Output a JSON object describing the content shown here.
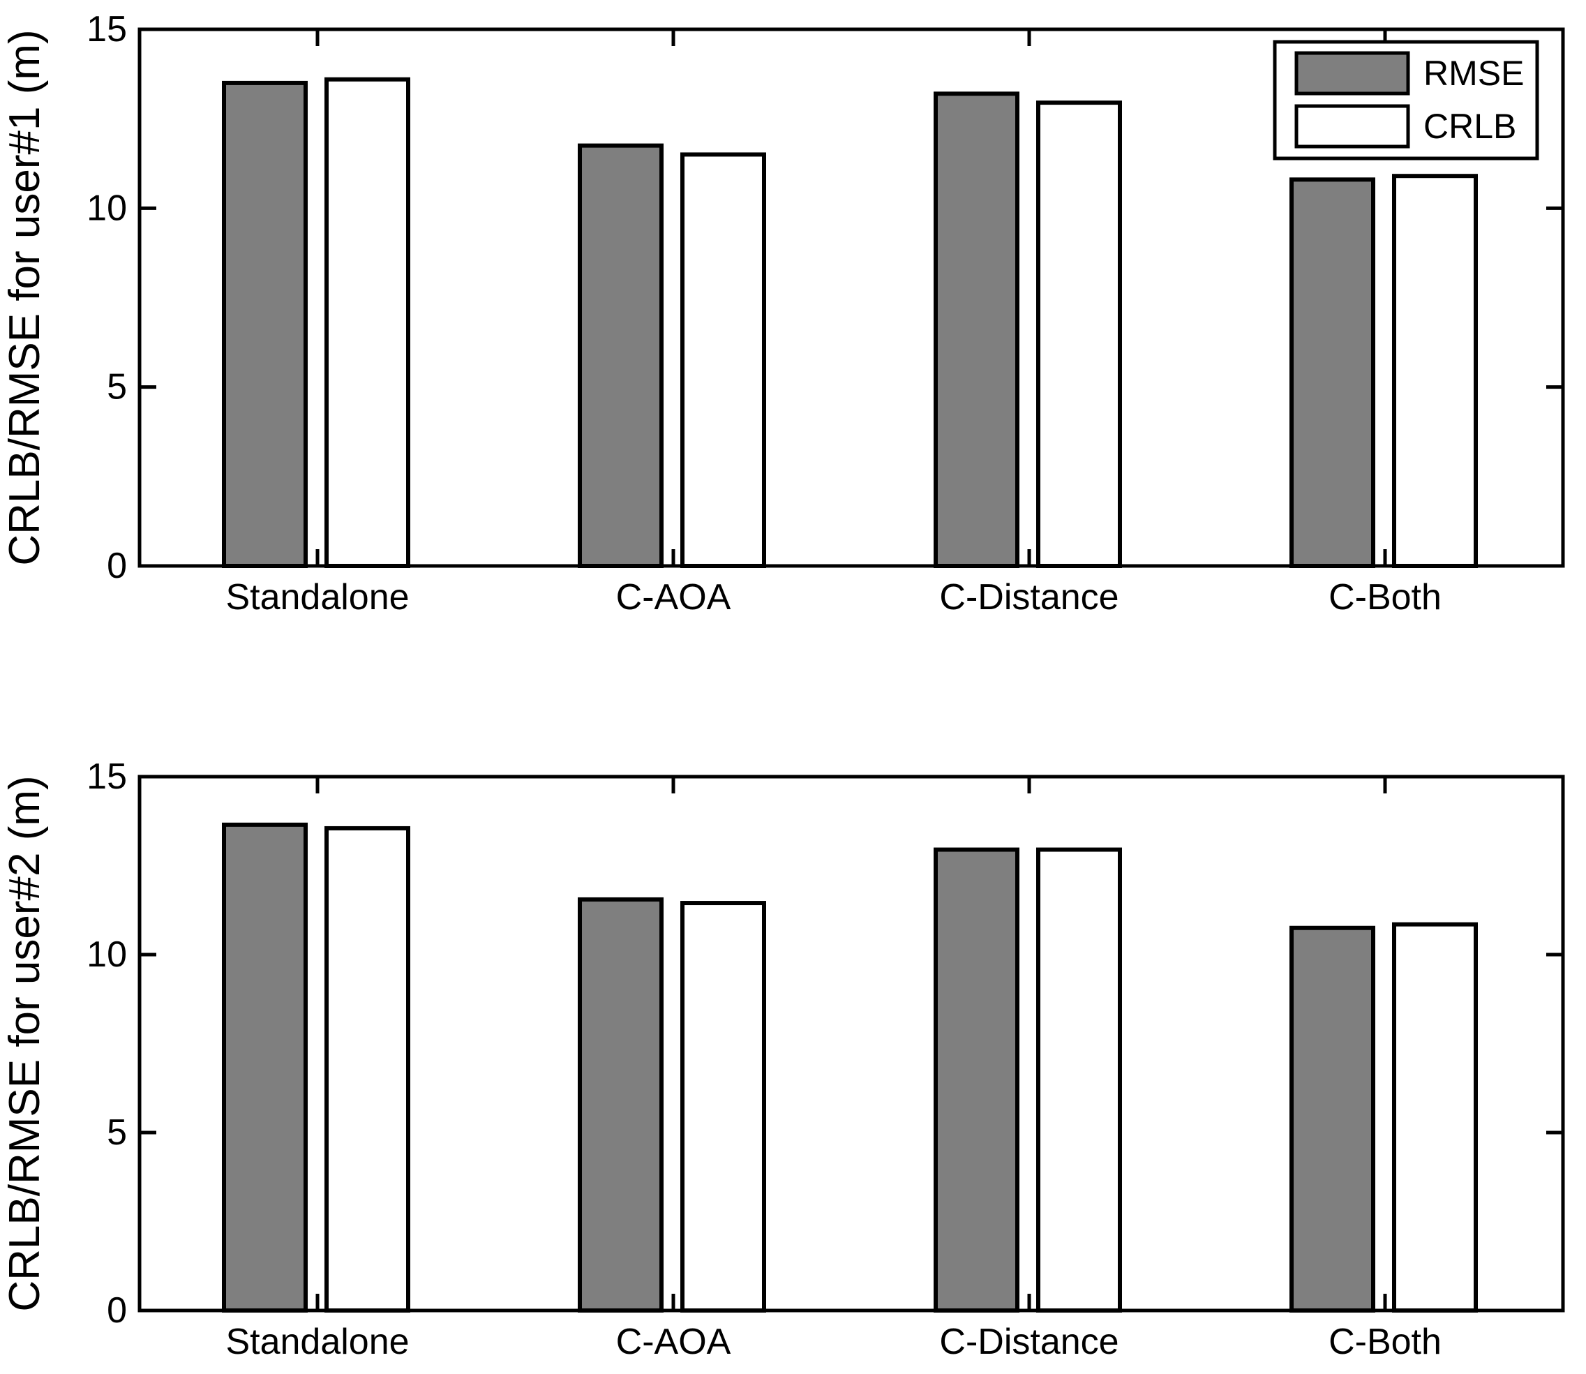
{
  "figure": {
    "background": "#ffffff",
    "axis_color": "#000000",
    "bar_fill_rmse": "#7f7f7f",
    "bar_fill_crlb": "#ffffff"
  },
  "legend": {
    "position": "top-right",
    "items": [
      {
        "label": "RMSE",
        "fill": "#7f7f7f"
      },
      {
        "label": "CRLB",
        "fill": "#ffffff"
      }
    ]
  },
  "chart_data": [
    {
      "type": "bar",
      "title": "",
      "xlabel": "",
      "ylabel": "CRLB/RMSE for user#1 (m)",
      "categories": [
        "Standalone",
        "C-AOA",
        "C-Distance",
        "C-Both"
      ],
      "series": [
        {
          "name": "RMSE",
          "fill": "#7f7f7f",
          "values": [
            13.5,
            11.75,
            13.2,
            10.8
          ]
        },
        {
          "name": "CRLB",
          "fill": "#ffffff",
          "values": [
            13.6,
            11.5,
            12.95,
            10.9
          ]
        }
      ],
      "ylim": [
        0,
        15
      ],
      "yticks": [
        0,
        5,
        10,
        15
      ],
      "grid": false,
      "legend_visible": true,
      "legend_position": "top-right"
    },
    {
      "type": "bar",
      "title": "",
      "xlabel": "",
      "ylabel": "CRLB/RMSE for user#2 (m)",
      "categories": [
        "Standalone",
        "C-AOA",
        "C-Distance",
        "C-Both"
      ],
      "series": [
        {
          "name": "RMSE",
          "fill": "#7f7f7f",
          "values": [
            13.65,
            11.55,
            12.95,
            10.75
          ]
        },
        {
          "name": "CRLB",
          "fill": "#ffffff",
          "values": [
            13.55,
            11.45,
            12.95,
            10.85
          ]
        }
      ],
      "ylim": [
        0,
        15
      ],
      "yticks": [
        0,
        5,
        10,
        15
      ],
      "grid": false,
      "legend_visible": false,
      "legend_position": "none"
    }
  ]
}
